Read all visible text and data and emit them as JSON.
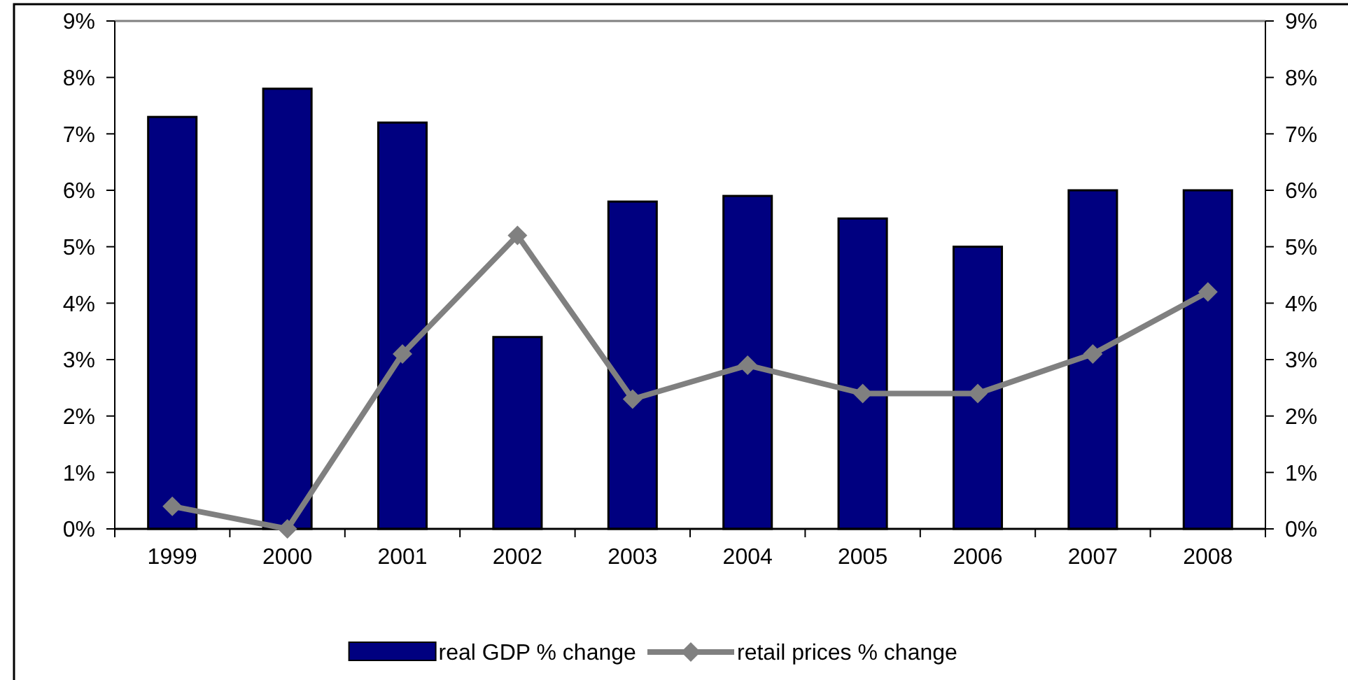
{
  "chart_data": {
    "type": "bar",
    "categories": [
      "1999",
      "2000",
      "2001",
      "2002",
      "2003",
      "2004",
      "2005",
      "2006",
      "2007",
      "2008"
    ],
    "series": [
      {
        "name": "real GDP % change",
        "color": "#000080",
        "values": [
          7.3,
          7.8,
          7.2,
          3.4,
          5.8,
          5.9,
          5.5,
          5.0,
          6.0,
          6.0
        ]
      },
      {
        "name": "retail prices % change",
        "type": "line",
        "color": "#808080",
        "marker": "diamond",
        "values": [
          0.4,
          0.0,
          3.1,
          5.2,
          2.3,
          2.9,
          2.4,
          2.4,
          3.1,
          4.2
        ]
      }
    ],
    "ylim": [
      0,
      9
    ],
    "yticks": [
      {
        "value": 0,
        "label": "0%"
      },
      {
        "value": 1,
        "label": "1%"
      },
      {
        "value": 2,
        "label": "2%"
      },
      {
        "value": 3,
        "label": "3%"
      },
      {
        "value": 4,
        "label": "4%"
      },
      {
        "value": 5,
        "label": "5%"
      },
      {
        "value": 6,
        "label": "6%"
      },
      {
        "value": 7,
        "label": "7%"
      },
      {
        "value": 8,
        "label": "8%"
      },
      {
        "value": 9,
        "label": "9%"
      }
    ],
    "y2lim": [
      0,
      9
    ],
    "y2ticks": [
      {
        "value": 0,
        "label": "0%"
      },
      {
        "value": 1,
        "label": "1%"
      },
      {
        "value": 2,
        "label": "2%"
      },
      {
        "value": 3,
        "label": "3%"
      },
      {
        "value": 4,
        "label": "4%"
      },
      {
        "value": 5,
        "label": "5%"
      },
      {
        "value": 6,
        "label": "6%"
      },
      {
        "value": 7,
        "label": "7%"
      },
      {
        "value": 8,
        "label": "8%"
      },
      {
        "value": 9,
        "label": "9%"
      }
    ],
    "legend": "bottom",
    "grid": false
  }
}
